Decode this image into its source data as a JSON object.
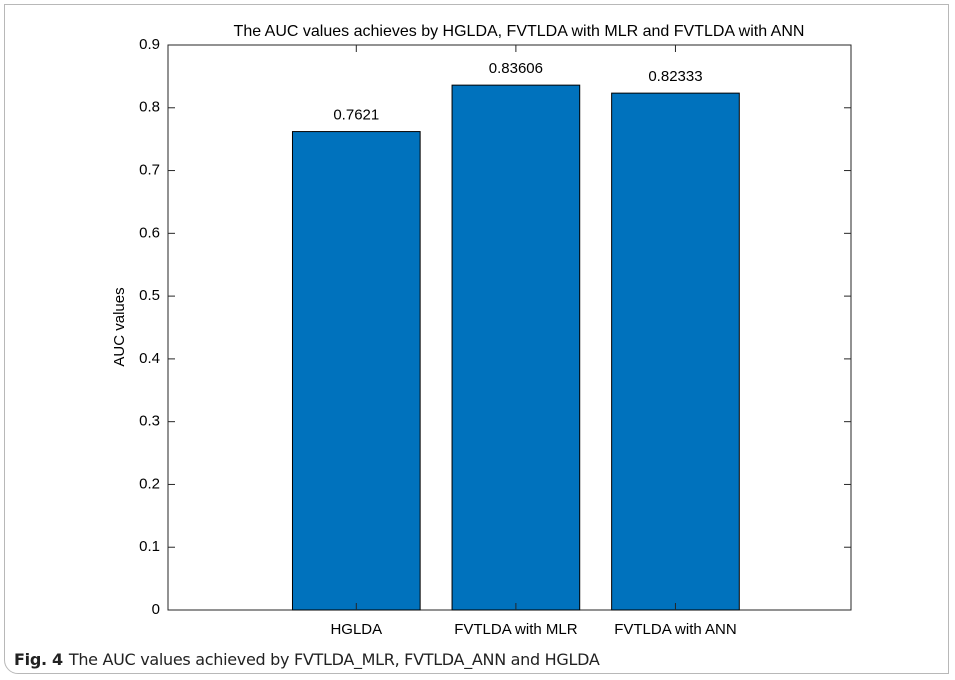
{
  "chart_data": {
    "type": "bar",
    "title": "The AUC values achieves by HGLDA, FVTLDA with MLR and FVTLDA with ANN",
    "y_label": "AUC values",
    "categories": [
      "HGLDA",
      "FVTLDA with MLR",
      "FVTLDA with ANN"
    ],
    "values": [
      0.7621,
      0.83606,
      0.82333
    ],
    "color": "#0072bd",
    "ylim": [
      0,
      0.9
    ],
    "yticks": [
      0,
      0.1,
      0.2,
      0.3,
      0.4,
      0.5,
      0.6,
      0.7,
      0.8,
      0.9
    ],
    "grid": false
  },
  "caption": {
    "label": "Fig. 4",
    "text": "The AUC values achieved by FVTLDA_MLR, FVTLDA_ANN and HGLDA"
  }
}
